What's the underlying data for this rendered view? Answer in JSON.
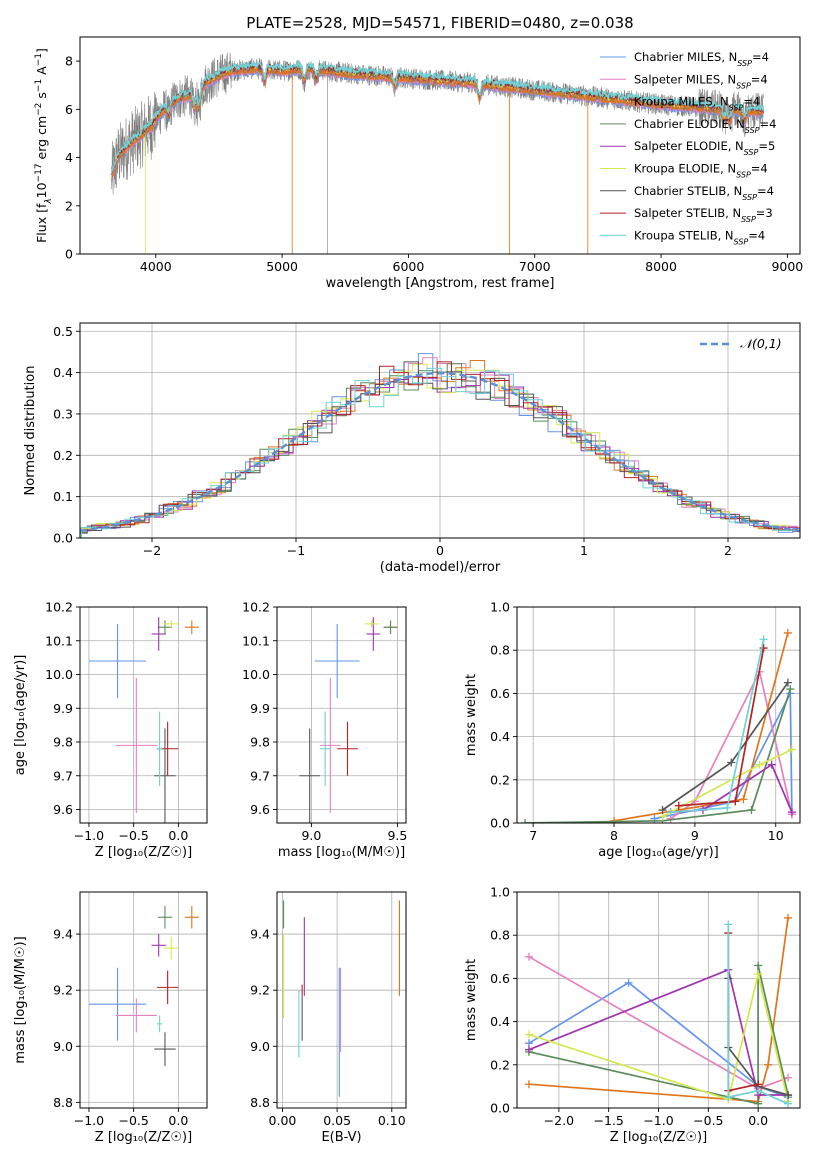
{
  "palette": [
    "#6495ed",
    "#e87fbf",
    "#e0761c",
    "#5b8a5b",
    "#a033b0",
    "#d4e84e",
    "#555555",
    "#b22222",
    "#6ed2d6"
  ],
  "gray": "#7f7f7f",
  "chart_data": [
    {
      "id": "spectrum",
      "type": "line",
      "title": "PLATE=2528, MJD=54571, FIBERID=0480, z=0.038",
      "xlabel": "wavelength [Angstrom, rest frame]",
      "ylabel_parts": [
        "Flux [f",
        "λ",
        "10",
        "−17",
        " erg cm",
        "−2",
        " s",
        "−1",
        " A",
        "−1",
        "]"
      ],
      "xlim": [
        3400,
        9100
      ],
      "ylim": [
        0,
        9
      ],
      "xticks": [
        4000,
        5000,
        6000,
        7000,
        8000,
        9000
      ],
      "yticks": [
        0,
        2,
        4,
        6,
        8
      ],
      "grid": false,
      "legend_placement": "upper-right",
      "legend": [
        {
          "pre": "Chabrier MILES, N",
          "sub": "SSP",
          "post": "=4"
        },
        {
          "pre": "Salpeter MILES, N",
          "sub": "SSP",
          "post": "=4"
        },
        {
          "pre": "Kroupa MILES, N",
          "sub": "SSP",
          "post": "=4"
        },
        {
          "pre": "Chabrier ELODIE, N",
          "sub": "SSP",
          "post": "=4"
        },
        {
          "pre": "Salpeter ELODIE, N",
          "sub": "SSP",
          "post": "=5"
        },
        {
          "pre": "Kroupa ELODIE, N",
          "sub": "SSP",
          "post": "=4"
        },
        {
          "pre": "Chabrier STELIB, N",
          "sub": "SSP",
          "post": "=4"
        },
        {
          "pre": "Salpeter STELIB, N",
          "sub": "SSP",
          "post": "=3"
        },
        {
          "pre": "Kroupa STELIB, N",
          "sub": "SSP",
          "post": "=4"
        }
      ],
      "continuum": [
        [
          3650,
          3.2
        ],
        [
          3700,
          4.0
        ],
        [
          3800,
          4.6
        ],
        [
          3900,
          5.0
        ],
        [
          4000,
          5.6
        ],
        [
          4100,
          6.2
        ],
        [
          4200,
          6.5
        ],
        [
          4300,
          6.6
        ],
        [
          4400,
          7.1
        ],
        [
          4500,
          7.4
        ],
        [
          4600,
          7.6
        ],
        [
          4800,
          7.7
        ],
        [
          5000,
          7.6
        ],
        [
          5200,
          7.7
        ],
        [
          5500,
          7.5
        ],
        [
          6000,
          7.3
        ],
        [
          6500,
          7.1
        ],
        [
          7000,
          6.8
        ],
        [
          7500,
          6.5
        ],
        [
          8000,
          6.2
        ],
        [
          8500,
          6.0
        ],
        [
          8800,
          5.9
        ]
      ],
      "absorption_lines": [
        [
          3934,
          5.2
        ],
        [
          3969,
          5.3
        ],
        [
          4102,
          5.7
        ],
        [
          4304,
          6.0
        ],
        [
          4341,
          6.0
        ],
        [
          4861,
          7.1
        ],
        [
          5175,
          7.1
        ],
        [
          5269,
          7.2
        ],
        [
          5892,
          6.9
        ],
        [
          6563,
          6.4
        ],
        [
          8498,
          5.6
        ],
        [
          8542,
          5.4
        ],
        [
          8662,
          5.5
        ]
      ],
      "bad_pixels": [
        {
          "x": 3920,
          "model": 5
        },
        {
          "x": 5080,
          "model": 2
        },
        {
          "x": 6800,
          "model": 2
        },
        {
          "x": 7420,
          "model": 2
        },
        {
          "x": 5360,
          "model": -1
        }
      ]
    },
    {
      "id": "residuals",
      "type": "histogram",
      "xlabel": "(data-model)/error",
      "ylabel": "Normed distribution",
      "xlim": [
        -2.5,
        2.5
      ],
      "ylim": [
        0,
        0.52
      ],
      "xticks": [
        -2,
        -1,
        0,
        1,
        2
      ],
      "yticks": [
        0.0,
        0.1,
        0.2,
        0.3,
        0.4,
        0.5
      ],
      "grid": true,
      "bin_width": 0.1,
      "gaussian": {
        "label": "𝒩(0,1)",
        "mu": 0,
        "sigma": 1
      }
    },
    {
      "id": "age-vs-Z",
      "type": "errorbar",
      "xlabel": "Z [log₁₀(Z/Z☉)]",
      "ylabel": "age  [log₁₀(age/yr)]",
      "xlim": [
        -1.1,
        0.32
      ],
      "ylim": [
        9.56,
        10.2
      ],
      "xticks": [
        -1.0,
        -0.5,
        0.0
      ],
      "yticks": [
        9.6,
        9.7,
        9.8,
        9.9,
        10.0,
        10.1,
        10.2
      ],
      "grid": true,
      "points": [
        {
          "x": -0.68,
          "xerr": 0.32,
          "y": 10.04,
          "yerr": 0.11
        },
        {
          "x": -0.47,
          "xerr": 0.23,
          "y": 9.79,
          "yerr": 0.2
        },
        {
          "x": 0.15,
          "xerr": 0.08,
          "y": 10.14,
          "yerr": 0.02
        },
        {
          "x": -0.15,
          "xerr": 0.08,
          "y": 10.14,
          "yerr": 0.02
        },
        {
          "x": -0.22,
          "xerr": 0.08,
          "y": 10.12,
          "yerr": 0.05
        },
        {
          "x": -0.08,
          "xerr": 0.08,
          "y": 10.15,
          "yerr": 0.01
        },
        {
          "x": -0.15,
          "xerr": 0.12,
          "y": 9.7,
          "yerr": 0.14
        },
        {
          "x": -0.12,
          "xerr": 0.12,
          "y": 9.78,
          "yerr": 0.08
        },
        {
          "x": -0.21,
          "xerr": 0.03,
          "y": 9.78,
          "yerr": 0.11
        }
      ]
    },
    {
      "id": "age-vs-mass",
      "type": "errorbar",
      "xlabel": "mass [log₁₀(M/M☉)]",
      "ylabel": "",
      "xlim": [
        8.8,
        9.55
      ],
      "ylim": [
        9.56,
        10.2
      ],
      "xticks": [
        9.0,
        9.5
      ],
      "yticks": [
        9.6,
        9.7,
        9.8,
        9.9,
        10.0,
        10.1,
        10.2
      ],
      "grid": true,
      "points": [
        {
          "x": 9.15,
          "xerr": 0.13,
          "y": 10.04,
          "yerr": 0.11
        },
        {
          "x": 9.11,
          "xerr": 0.06,
          "y": 9.79,
          "yerr": 0.2
        },
        {
          "x": 9.46,
          "xerr": 0.04,
          "y": 10.14,
          "yerr": 0.02
        },
        {
          "x": 9.46,
          "xerr": 0.04,
          "y": 10.14,
          "yerr": 0.02
        },
        {
          "x": 9.36,
          "xerr": 0.04,
          "y": 10.12,
          "yerr": 0.05
        },
        {
          "x": 9.35,
          "xerr": 0.04,
          "y": 10.15,
          "yerr": 0.01
        },
        {
          "x": 8.99,
          "xerr": 0.06,
          "y": 9.7,
          "yerr": 0.14
        },
        {
          "x": 9.21,
          "xerr": 0.06,
          "y": 9.78,
          "yerr": 0.08
        },
        {
          "x": 9.08,
          "xerr": 0.03,
          "y": 9.78,
          "yerr": 0.11
        }
      ]
    },
    {
      "id": "mass-weight-vs-age",
      "type": "line",
      "xlabel": "age  [log₁₀(age/yr)]",
      "ylabel": "mass weight",
      "xlim": [
        6.8,
        10.3
      ],
      "ylim": [
        0,
        1
      ],
      "xticks": [
        7,
        8,
        9,
        10
      ],
      "yticks": [
        0.0,
        0.2,
        0.4,
        0.6,
        0.8,
        1.0
      ],
      "grid": true,
      "series": [
        {
          "points": [
            [
              8.5,
              0.02
            ],
            [
              9.5,
              0.1
            ],
            [
              10.18,
              0.6
            ],
            [
              10.2,
              0.04
            ]
          ]
        },
        {
          "points": [
            [
              8.7,
              0.02
            ],
            [
              9.0,
              0.1
            ],
            [
              9.8,
              0.7
            ],
            [
              10.2,
              0.04
            ]
          ]
        },
        {
          "points": [
            [
              8.0,
              0.01
            ],
            [
              9.6,
              0.11
            ],
            [
              10.15,
              0.88
            ]
          ]
        },
        {
          "points": [
            [
              6.9,
              0.0
            ],
            [
              8.6,
              0.01
            ],
            [
              9.7,
              0.06
            ],
            [
              10.18,
              0.62
            ]
          ]
        },
        {
          "points": [
            [
              8.7,
              0.05
            ],
            [
              9.1,
              0.06
            ],
            [
              9.95,
              0.27
            ],
            [
              10.2,
              0.05
            ]
          ]
        },
        {
          "points": [
            [
              8.6,
              0.03
            ],
            [
              9.8,
              0.27
            ],
            [
              10.2,
              0.34
            ]
          ]
        },
        {
          "points": [
            [
              8.6,
              0.06
            ],
            [
              9.45,
              0.28
            ],
            [
              10.15,
              0.65
            ]
          ]
        },
        {
          "points": [
            [
              8.8,
              0.08
            ],
            [
              9.5,
              0.1
            ],
            [
              9.85,
              0.81
            ]
          ]
        },
        {
          "points": [
            [
              8.7,
              0.05
            ],
            [
              9.4,
              0.07
            ],
            [
              9.85,
              0.85
            ]
          ]
        }
      ]
    },
    {
      "id": "mass-vs-Z",
      "type": "errorbar",
      "xlabel": "Z [log₁₀(Z/Z☉)]",
      "ylabel": "mass [log₁₀(M/M☉)]",
      "xlim": [
        -1.1,
        0.32
      ],
      "ylim": [
        8.78,
        9.55
      ],
      "xticks": [
        -1.0,
        -0.5,
        0.0
      ],
      "yticks": [
        8.8,
        9.0,
        9.2,
        9.4
      ],
      "grid": true,
      "points": [
        {
          "x": -0.68,
          "xerr": 0.32,
          "y": 9.15,
          "yerr": 0.13
        },
        {
          "x": -0.47,
          "xerr": 0.23,
          "y": 9.11,
          "yerr": 0.06
        },
        {
          "x": 0.15,
          "xerr": 0.08,
          "y": 9.46,
          "yerr": 0.04
        },
        {
          "x": -0.15,
          "xerr": 0.08,
          "y": 9.46,
          "yerr": 0.04
        },
        {
          "x": -0.22,
          "xerr": 0.08,
          "y": 9.36,
          "yerr": 0.04
        },
        {
          "x": -0.08,
          "xerr": 0.08,
          "y": 9.35,
          "yerr": 0.04
        },
        {
          "x": -0.15,
          "xerr": 0.12,
          "y": 8.99,
          "yerr": 0.06
        },
        {
          "x": -0.12,
          "xerr": 0.12,
          "y": 9.21,
          "yerr": 0.06
        },
        {
          "x": -0.21,
          "xerr": 0.03,
          "y": 9.08,
          "yerr": 0.03
        }
      ]
    },
    {
      "id": "mass-vs-EBV",
      "type": "errorbar",
      "xlabel": "E(B-V)",
      "ylabel": "",
      "xlim": [
        -0.005,
        0.113
      ],
      "ylim": [
        8.78,
        9.55
      ],
      "xticks": [
        0.0,
        0.05,
        0.1
      ],
      "yticks": [
        8.8,
        9.0,
        9.2,
        9.4
      ],
      "grid": true,
      "points": [
        {
          "x": 0.052,
          "y": 9.05,
          "yerr": 0.23,
          "c": 0
        },
        {
          "x": 0.053,
          "y": 9.13,
          "yerr": 0.15,
          "c": 1
        },
        {
          "x": 0.107,
          "y": 9.35,
          "yerr": 0.17,
          "c": 2
        },
        {
          "x": 0.001,
          "y": 9.47,
          "yerr": 0.05,
          "c": 3
        },
        {
          "x": 0.02,
          "y": 9.32,
          "yerr": 0.14,
          "c": 4
        },
        {
          "x": 0.001,
          "y": 9.25,
          "yerr": 0.15,
          "c": 5
        },
        {
          "x": 0.018,
          "y": 9.1,
          "yerr": 0.08,
          "c": 6
        },
        {
          "x": 0.018,
          "y": 9.2,
          "yerr": 0.02,
          "c": 7
        },
        {
          "x": 0.015,
          "y": 9.08,
          "yerr": 0.12,
          "c": 8
        }
      ]
    },
    {
      "id": "mass-weight-vs-Z",
      "type": "line",
      "xlabel": "Z [log₁₀(Z/Z☉)]",
      "ylabel": "mass weight",
      "xlim": [
        -2.42,
        0.42
      ],
      "ylim": [
        0,
        1
      ],
      "xticks": [
        -2.0,
        -1.5,
        -1.0,
        -0.5,
        0.0
      ],
      "yticks": [
        0.0,
        0.2,
        0.4,
        0.6,
        0.8,
        1.0
      ],
      "grid": true,
      "series": [
        {
          "points": [
            [
              -2.3,
              0.3
            ],
            [
              -1.3,
              0.58
            ],
            [
              0.0,
              0.1
            ],
            [
              0.3,
              0.05
            ]
          ]
        },
        {
          "points": [
            [
              -2.3,
              0.7
            ],
            [
              0.0,
              0.09
            ],
            [
              0.3,
              0.14
            ]
          ]
        },
        {
          "points": [
            [
              -2.3,
              0.11
            ],
            [
              0.0,
              0.03
            ],
            [
              0.1,
              0.2
            ],
            [
              0.3,
              0.88
            ]
          ]
        },
        {
          "points": [
            [
              -2.3,
              0.26
            ],
            [
              0.0,
              0.02
            ],
            [
              0.0,
              0.66
            ],
            [
              0.3,
              0.06
            ]
          ]
        },
        {
          "points": [
            [
              -2.3,
              0.27
            ],
            [
              -0.3,
              0.64
            ],
            [
              0.0,
              0.06
            ],
            [
              0.3,
              0.06
            ]
          ]
        },
        {
          "points": [
            [
              -2.3,
              0.34
            ],
            [
              -0.3,
              0.04
            ],
            [
              0.0,
              0.62
            ],
            [
              0.3,
              0.03
            ]
          ]
        },
        {
          "points": [
            [
              -0.3,
              0.6
            ],
            [
              -0.3,
              0.28
            ],
            [
              0.0,
              0.1
            ],
            [
              0.3,
              0.06
            ]
          ]
        },
        {
          "points": [
            [
              -0.3,
              0.81
            ],
            [
              -0.3,
              0.08
            ],
            [
              0.0,
              0.11
            ]
          ]
        },
        {
          "points": [
            [
              -0.3,
              0.85
            ],
            [
              -0.3,
              0.05
            ],
            [
              0.0,
              0.08
            ],
            [
              0.3,
              0.02
            ]
          ]
        }
      ]
    }
  ]
}
